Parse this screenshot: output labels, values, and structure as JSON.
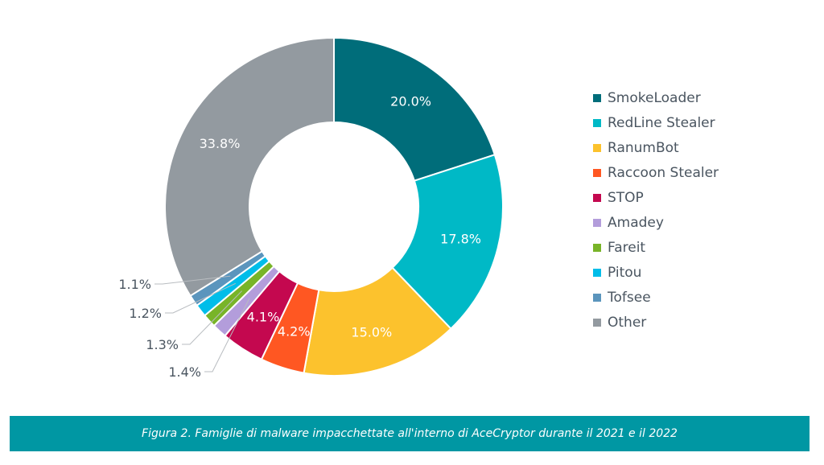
{
  "chart_data": {
    "type": "pie",
    "subtype": "donut",
    "title": "",
    "slices": [
      {
        "label": "SmokeLoader",
        "value": 20.0,
        "display": "20.0%",
        "color": "#006d7a",
        "label_pos": "inside"
      },
      {
        "label": "RedLine Stealer",
        "value": 17.8,
        "display": "17.8%",
        "color": "#00b9c6",
        "label_pos": "inside"
      },
      {
        "label": "RanumBot",
        "value": 15.0,
        "display": "15.0%",
        "color": "#fcc22d",
        "label_pos": "inside"
      },
      {
        "label": "Raccoon Stealer",
        "value": 4.2,
        "display": "4.2%",
        "color": "#ff5722",
        "label_pos": "inside"
      },
      {
        "label": "STOP",
        "value": 4.1,
        "display": "4.1%",
        "color": "#c4084f",
        "label_pos": "inside"
      },
      {
        "label": "Amadey",
        "value": 1.4,
        "display": "1.4%",
        "color": "#b39ddb",
        "label_pos": "outside"
      },
      {
        "label": "Fareit",
        "value": 1.3,
        "display": "1.3%",
        "color": "#78b428",
        "label_pos": "outside"
      },
      {
        "label": "Pitou",
        "value": 1.2,
        "display": "1.2%",
        "color": "#00bde9",
        "label_pos": "outside"
      },
      {
        "label": "Tofsee",
        "value": 1.1,
        "display": "1.1%",
        "color": "#5b95bd",
        "label_pos": "outside"
      },
      {
        "label": "Other",
        "value": 33.8,
        "display": "33.8%",
        "color": "#939aa0",
        "label_pos": "inside"
      }
    ],
    "legend_placement": "right"
  },
  "caption": "Figura 2. Famiglie di malware impacchettate all'interno di AceCryptor durante il 2021 e il 2022"
}
